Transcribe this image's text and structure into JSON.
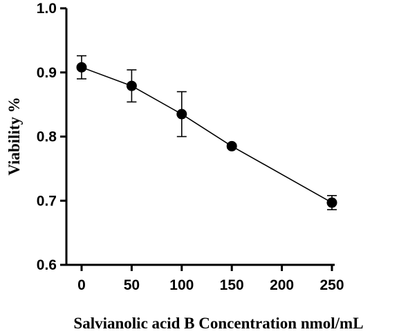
{
  "chart_data": {
    "type": "line",
    "title": "",
    "xlabel": "Salvianolic acid B Concentration nmol/mL",
    "ylabel": "Viability %",
    "x_ticks": [
      "0",
      "50",
      "100",
      "150",
      "200",
      "250"
    ],
    "y_ticks": [
      "0.6",
      "0.7",
      "0.8",
      "0.9",
      "1.0"
    ],
    "xlim": [
      0,
      250
    ],
    "ylim": [
      0.6,
      1.0
    ],
    "grid": false,
    "legend": "none",
    "series": [
      {
        "x": [
          0,
          50,
          100,
          150,
          250
        ],
        "y": [
          0.908,
          0.879,
          0.835,
          0.785,
          0.697
        ],
        "err": [
          0.018,
          0.025,
          0.035,
          0.003,
          0.011
        ],
        "color": "#000000",
        "marker": "circle"
      }
    ]
  }
}
